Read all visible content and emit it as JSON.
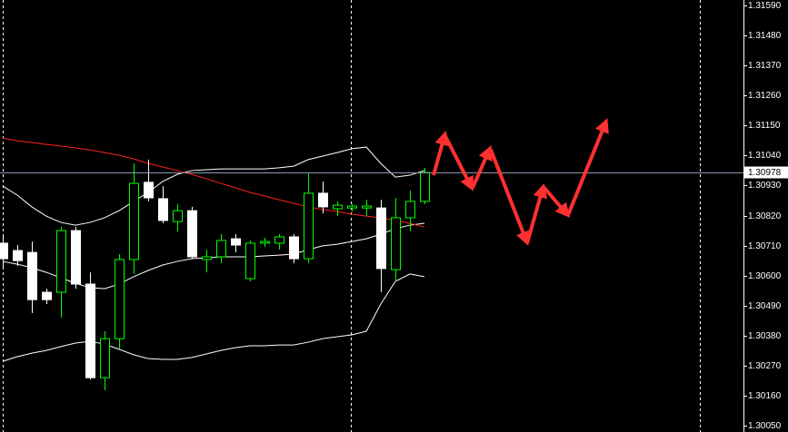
{
  "chart_data": {
    "type": "candlestick",
    "categories": [
      null,
      null,
      null,
      null,
      null,
      null,
      null,
      null,
      null,
      null,
      null,
      null,
      null,
      null,
      null,
      null,
      null,
      null,
      null,
      null,
      null,
      null,
      null,
      null,
      null,
      null,
      null,
      null,
      null,
      null
    ],
    "open": [
      1.30719,
      1.30692,
      1.30685,
      1.30539,
      1.30539,
      1.30765,
      1.30569,
      1.30226,
      1.30369,
      1.30659,
      1.30942,
      1.30882,
      1.30798,
      1.30838,
      1.30659,
      1.30669,
      1.30735,
      1.30589,
      1.30719,
      1.30719,
      1.30742,
      1.30662,
      1.30902,
      1.30845,
      1.30848,
      1.30848,
      1.30848,
      1.30622,
      1.30812,
      1.30872
    ],
    "high": [
      1.30745,
      1.30712,
      1.30725,
      1.30552,
      1.30778,
      1.30778,
      1.30612,
      1.30396,
      1.30679,
      1.31011,
      1.31025,
      1.30928,
      1.30862,
      1.30852,
      1.30695,
      1.30752,
      1.30752,
      1.30729,
      1.30739,
      1.30752,
      1.30752,
      1.30978,
      1.30945,
      1.30872,
      1.30862,
      1.30878,
      1.30878,
      1.30885,
      1.30912,
      1.30995
    ],
    "low": [
      1.30629,
      1.30636,
      1.30463,
      1.30496,
      1.30446,
      1.30552,
      1.3022,
      1.3018,
      1.3033,
      1.30606,
      1.30872,
      1.30792,
      1.30762,
      1.30662,
      1.30612,
      1.30645,
      1.30685,
      1.30579,
      1.30705,
      1.30695,
      1.30645,
      1.30645,
      1.30828,
      1.30818,
      1.30835,
      1.30818,
      1.30539,
      1.30579,
      1.30762,
      1.30862
    ],
    "close": [
      1.30662,
      1.30655,
      1.30512,
      1.30512,
      1.30765,
      1.30569,
      1.30226,
      1.30369,
      1.30659,
      1.30938,
      1.30885,
      1.30802,
      1.30838,
      1.30669,
      1.30669,
      1.30729,
      1.30712,
      1.30719,
      1.30725,
      1.30742,
      1.30662,
      1.30902,
      1.30852,
      1.30858,
      1.30855,
      1.30855,
      1.30626,
      1.30812,
      1.30872,
      1.30978
    ],
    "up_color": "#00ff00",
    "down_color": "#ffffff",
    "series": [
      {
        "color": "#ffffff",
        "values": [
          1.30928,
          1.30895,
          1.30852,
          1.30818,
          1.30795,
          1.30785,
          1.30795,
          1.30812,
          1.30838,
          1.30872,
          1.30905,
          1.30945,
          1.30971,
          1.30985,
          1.30988,
          1.30991,
          1.30991,
          1.30991,
          1.30991,
          1.30995,
          1.31001,
          1.31025,
          1.31038,
          1.31051,
          1.31065,
          1.31071,
          1.31011,
          1.30961,
          1.30968,
          1.30985
        ]
      },
      {
        "color": "#ffffff",
        "values": [
          1.30652,
          1.30642,
          1.30629,
          1.30612,
          1.30592,
          1.30572,
          1.30556,
          1.30552,
          1.30569,
          1.30596,
          1.30619,
          1.30639,
          1.30652,
          1.30662,
          1.30665,
          1.30669,
          1.30669,
          1.30669,
          1.30672,
          1.30675,
          1.30679,
          1.30695,
          1.30709,
          1.30715,
          1.30725,
          1.30735,
          1.30752,
          1.30772,
          1.30785,
          1.30792
        ]
      },
      {
        "color": "#ffffff",
        "values": [
          1.30286,
          1.30303,
          1.30316,
          1.30326,
          1.3034,
          1.30353,
          1.30359,
          1.30349,
          1.3033,
          1.3031,
          1.30296,
          1.30293,
          1.30293,
          1.303,
          1.30313,
          1.30326,
          1.30336,
          1.30343,
          1.30343,
          1.30346,
          1.30346,
          1.30356,
          1.30369,
          1.30376,
          1.30383,
          1.30396,
          1.30496,
          1.30579,
          1.30606,
          1.30596
        ]
      },
      {
        "color": "#ff2020",
        "values": [
          1.31104,
          1.31094,
          1.31088,
          1.31081,
          1.31075,
          1.31068,
          1.31061,
          1.31051,
          1.31041,
          1.31028,
          1.31011,
          1.30998,
          1.30985,
          1.30971,
          1.30955,
          1.30938,
          1.30922,
          1.30905,
          1.30892,
          1.30878,
          1.30865,
          1.30852,
          1.30842,
          1.30835,
          1.30825,
          1.30818,
          1.30812,
          1.30802,
          1.30792,
          1.30778
        ]
      }
    ],
    "price_line": 1.30978,
    "ylim": [
      1.30027,
      1.3161
    ],
    "yticks": [
      {
        "value": 1.3159,
        "label": "1.31590"
      },
      {
        "value": 1.3148,
        "label": "1.31480"
      },
      {
        "value": 1.3137,
        "label": "1.31370"
      },
      {
        "value": 1.3126,
        "label": "1.31260"
      },
      {
        "value": 1.3115,
        "label": "1.31150"
      },
      {
        "value": 1.3104,
        "label": "1.31040"
      },
      {
        "value": 1.3093,
        "label": "1.30930"
      },
      {
        "value": 1.3082,
        "label": "1.30820"
      },
      {
        "value": 1.3071,
        "label": "1.30710"
      },
      {
        "value": 1.306,
        "label": "1.30600"
      },
      {
        "value": 1.3049,
        "label": "1.30490"
      },
      {
        "value": 1.3038,
        "label": "1.30380"
      },
      {
        "value": 1.3027,
        "label": "1.30270"
      },
      {
        "value": 1.3016,
        "label": "1.30160"
      },
      {
        "value": 1.3005,
        "label": "1.30050"
      }
    ]
  }
}
